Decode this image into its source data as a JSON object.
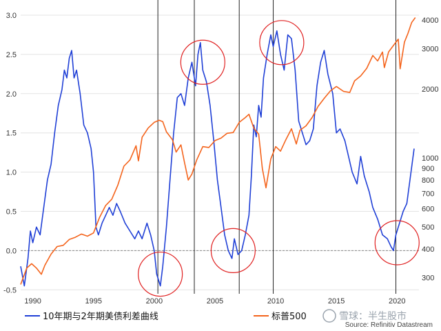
{
  "chart_data": {
    "type": "line",
    "y_left": {
      "ticks": [
        3.0,
        2.5,
        2.0,
        1.5,
        1.0,
        0.5,
        0.0,
        -0.5
      ],
      "tick_labels": [
        "3.0",
        "2.5",
        "2.0",
        "1.5",
        "1.0",
        "0.5",
        "0.0",
        "-0.5"
      ],
      "range": [
        -0.55,
        3.0
      ]
    },
    "y_right": {
      "scale": "log",
      "ticks": [
        4000,
        3000,
        2000,
        1000,
        900,
        800,
        700,
        600,
        500,
        400,
        300
      ],
      "tick_labels": [
        "4000",
        "3000",
        "2000",
        "1000",
        "900",
        "800",
        "700",
        "600",
        "500",
        "400",
        "300"
      ],
      "range": [
        255,
        4200
      ]
    },
    "x": {
      "ticks": [
        1990,
        1995,
        2000,
        2005,
        2010,
        2015,
        2020
      ],
      "tick_labels": [
        "1990",
        "1995",
        "2000",
        "2005",
        "2010",
        "2015",
        "2020"
      ],
      "range": [
        1989.0,
        2021.8
      ]
    },
    "series": [
      {
        "name": "10年期与2年期美债利差曲线",
        "color": "#1f3fd6",
        "axis": "left",
        "points": [
          [
            1989.0,
            -0.2
          ],
          [
            1989.3,
            -0.45
          ],
          [
            1989.6,
            -0.1
          ],
          [
            1989.8,
            0.25
          ],
          [
            1990.0,
            0.1
          ],
          [
            1990.3,
            0.3
          ],
          [
            1990.6,
            0.2
          ],
          [
            1990.9,
            0.55
          ],
          [
            1991.2,
            0.9
          ],
          [
            1991.5,
            1.1
          ],
          [
            1991.8,
            1.5
          ],
          [
            1992.1,
            1.85
          ],
          [
            1992.4,
            2.05
          ],
          [
            1992.6,
            2.3
          ],
          [
            1992.8,
            2.2
          ],
          [
            1993.0,
            2.45
          ],
          [
            1993.2,
            2.55
          ],
          [
            1993.4,
            2.2
          ],
          [
            1993.6,
            2.3
          ],
          [
            1993.9,
            2.0
          ],
          [
            1994.2,
            1.6
          ],
          [
            1994.5,
            1.5
          ],
          [
            1994.8,
            1.3
          ],
          [
            1995.0,
            1.0
          ],
          [
            1995.2,
            0.3
          ],
          [
            1995.4,
            0.2
          ],
          [
            1995.7,
            0.35
          ],
          [
            1996.0,
            0.45
          ],
          [
            1996.3,
            0.55
          ],
          [
            1996.6,
            0.45
          ],
          [
            1996.9,
            0.6
          ],
          [
            1997.2,
            0.5
          ],
          [
            1997.6,
            0.35
          ],
          [
            1998.0,
            0.25
          ],
          [
            1998.4,
            0.15
          ],
          [
            1998.7,
            0.25
          ],
          [
            1999.0,
            0.15
          ],
          [
            1999.4,
            0.35
          ],
          [
            1999.7,
            0.2
          ],
          [
            2000.0,
            0.0
          ],
          [
            2000.2,
            -0.3
          ],
          [
            2000.5,
            -0.45
          ],
          [
            2000.7,
            -0.2
          ],
          [
            2001.0,
            0.3
          ],
          [
            2001.3,
            0.9
          ],
          [
            2001.6,
            1.5
          ],
          [
            2001.9,
            1.95
          ],
          [
            2002.2,
            2.0
          ],
          [
            2002.5,
            1.85
          ],
          [
            2002.8,
            2.2
          ],
          [
            2003.1,
            2.4
          ],
          [
            2003.4,
            2.1
          ],
          [
            2003.6,
            2.5
          ],
          [
            2003.8,
            2.65
          ],
          [
            2004.0,
            2.3
          ],
          [
            2004.3,
            2.15
          ],
          [
            2004.6,
            1.85
          ],
          [
            2004.9,
            1.4
          ],
          [
            2005.2,
            0.9
          ],
          [
            2005.5,
            0.55
          ],
          [
            2005.8,
            0.2
          ],
          [
            2006.1,
            0.0
          ],
          [
            2006.4,
            -0.1
          ],
          [
            2006.6,
            0.15
          ],
          [
            2006.9,
            -0.05
          ],
          [
            2007.2,
            0.0
          ],
          [
            2007.5,
            0.2
          ],
          [
            2007.8,
            0.45
          ],
          [
            2008.0,
            0.95
          ],
          [
            2008.2,
            1.6
          ],
          [
            2008.4,
            1.45
          ],
          [
            2008.6,
            1.85
          ],
          [
            2008.8,
            1.7
          ],
          [
            2009.0,
            2.2
          ],
          [
            2009.3,
            2.5
          ],
          [
            2009.6,
            2.75
          ],
          [
            2009.8,
            2.6
          ],
          [
            2010.1,
            2.8
          ],
          [
            2010.4,
            2.5
          ],
          [
            2010.7,
            2.3
          ],
          [
            2011.0,
            2.75
          ],
          [
            2011.3,
            2.7
          ],
          [
            2011.6,
            2.3
          ],
          [
            2011.9,
            1.65
          ],
          [
            2012.2,
            1.5
          ],
          [
            2012.5,
            1.35
          ],
          [
            2012.8,
            1.4
          ],
          [
            2013.1,
            1.55
          ],
          [
            2013.4,
            2.1
          ],
          [
            2013.7,
            2.4
          ],
          [
            2014.0,
            2.55
          ],
          [
            2014.3,
            2.25
          ],
          [
            2014.7,
            2.0
          ],
          [
            2015.0,
            1.5
          ],
          [
            2015.3,
            1.55
          ],
          [
            2015.7,
            1.4
          ],
          [
            2016.0,
            1.2
          ],
          [
            2016.3,
            1.0
          ],
          [
            2016.7,
            0.85
          ],
          [
            2017.0,
            1.2
          ],
          [
            2017.3,
            0.95
          ],
          [
            2017.7,
            0.75
          ],
          [
            2018.0,
            0.55
          ],
          [
            2018.4,
            0.4
          ],
          [
            2018.8,
            0.2
          ],
          [
            2019.2,
            0.15
          ],
          [
            2019.5,
            0.05
          ],
          [
            2019.7,
            0.0
          ],
          [
            2019.9,
            0.2
          ],
          [
            2020.2,
            0.35
          ],
          [
            2020.5,
            0.5
          ],
          [
            2020.8,
            0.6
          ],
          [
            2021.1,
            0.95
          ],
          [
            2021.4,
            1.3
          ]
        ]
      },
      {
        "name": "标普500",
        "color": "#f4631b",
        "axis": "right",
        "points": [
          [
            1989.0,
            280
          ],
          [
            1989.5,
            330
          ],
          [
            1989.9,
            345
          ],
          [
            1990.3,
            330
          ],
          [
            1990.7,
            310
          ],
          [
            1991.0,
            340
          ],
          [
            1991.5,
            380
          ],
          [
            1992.0,
            410
          ],
          [
            1992.5,
            415
          ],
          [
            1993.0,
            440
          ],
          [
            1993.5,
            450
          ],
          [
            1994.0,
            465
          ],
          [
            1994.5,
            455
          ],
          [
            1995.0,
            470
          ],
          [
            1995.5,
            550
          ],
          [
            1996.0,
            620
          ],
          [
            1996.5,
            660
          ],
          [
            1997.0,
            760
          ],
          [
            1997.5,
            920
          ],
          [
            1998.0,
            980
          ],
          [
            1998.5,
            1130
          ],
          [
            1998.7,
            970
          ],
          [
            1999.0,
            1230
          ],
          [
            1999.5,
            1350
          ],
          [
            2000.0,
            1430
          ],
          [
            2000.4,
            1460
          ],
          [
            2000.7,
            1440
          ],
          [
            2001.0,
            1300
          ],
          [
            2001.5,
            1200
          ],
          [
            2001.8,
            1060
          ],
          [
            2002.2,
            1140
          ],
          [
            2002.5,
            950
          ],
          [
            2002.8,
            800
          ],
          [
            2003.1,
            850
          ],
          [
            2003.5,
            980
          ],
          [
            2004.0,
            1120
          ],
          [
            2004.5,
            1110
          ],
          [
            2005.0,
            1190
          ],
          [
            2005.5,
            1220
          ],
          [
            2006.0,
            1280
          ],
          [
            2006.5,
            1290
          ],
          [
            2007.0,
            1430
          ],
          [
            2007.5,
            1500
          ],
          [
            2007.8,
            1550
          ],
          [
            2008.2,
            1350
          ],
          [
            2008.6,
            1270
          ],
          [
            2008.9,
            900
          ],
          [
            2009.2,
            740
          ],
          [
            2009.6,
            990
          ],
          [
            2010.0,
            1120
          ],
          [
            2010.4,
            1070
          ],
          [
            2010.8,
            1190
          ],
          [
            2011.3,
            1340
          ],
          [
            2011.7,
            1150
          ],
          [
            2012.0,
            1320
          ],
          [
            2012.5,
            1380
          ],
          [
            2013.0,
            1500
          ],
          [
            2013.5,
            1680
          ],
          [
            2014.0,
            1820
          ],
          [
            2014.5,
            1960
          ],
          [
            2015.0,
            2050
          ],
          [
            2015.6,
            1950
          ],
          [
            2016.1,
            1930
          ],
          [
            2016.5,
            2170
          ],
          [
            2017.0,
            2280
          ],
          [
            2017.5,
            2460
          ],
          [
            2018.0,
            2800
          ],
          [
            2018.4,
            2650
          ],
          [
            2018.8,
            2900
          ],
          [
            2018.95,
            2480
          ],
          [
            2019.3,
            2900
          ],
          [
            2019.8,
            3150
          ],
          [
            2020.1,
            3300
          ],
          [
            2020.25,
            2450
          ],
          [
            2020.6,
            3200
          ],
          [
            2020.9,
            3500
          ],
          [
            2021.2,
            3900
          ],
          [
            2021.5,
            4100
          ]
        ]
      }
    ],
    "vertical_lines": [
      2000.3,
      2003.3,
      2007.0,
      2009.8,
      2019.9
    ],
    "circles": [
      {
        "x": 2000.5,
        "y": -0.3
      },
      {
        "x": 2004.0,
        "y": 2.4
      },
      {
        "x": 2006.5,
        "y": 0.0
      },
      {
        "x": 2010.5,
        "y": 2.65
      },
      {
        "x": 2020.0,
        "y": 0.1
      }
    ],
    "grid": true,
    "legend_position": "bottom"
  },
  "source_text": "Source: Refinitiv Datastream",
  "watermark_text": "雪球：半生股市"
}
